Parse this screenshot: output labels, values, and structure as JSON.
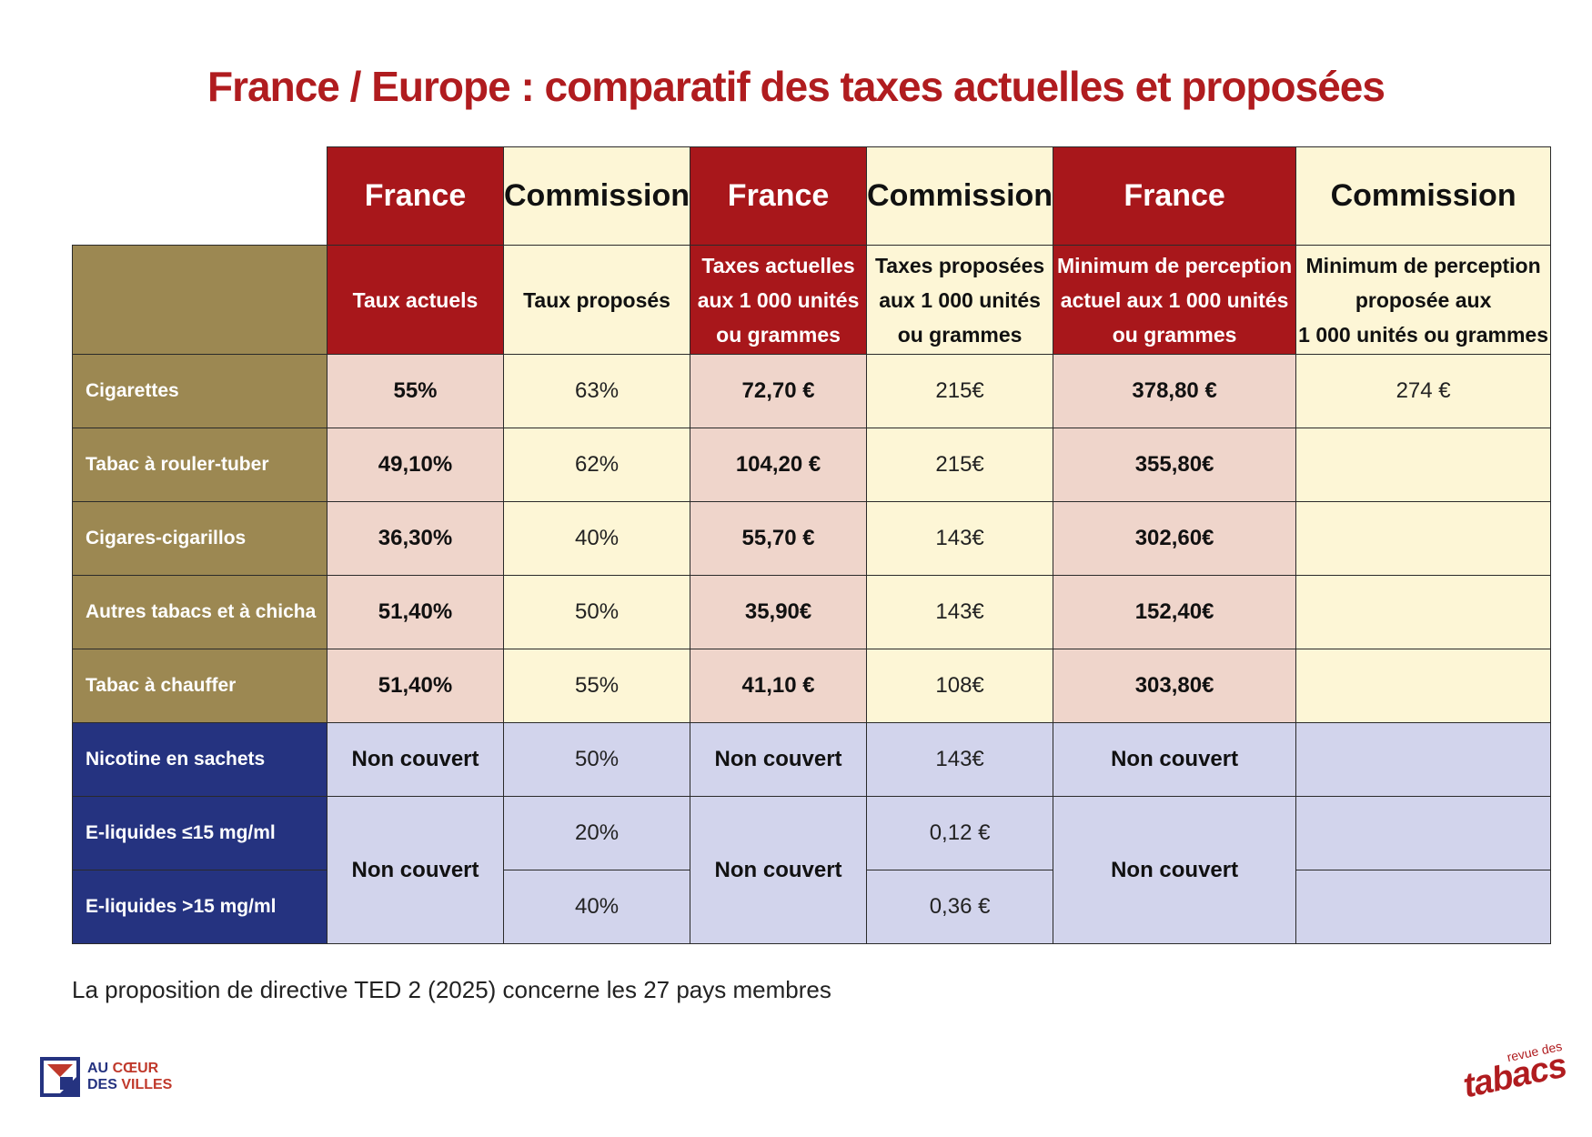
{
  "title": "France / Europe : comparatif des taxes actuelles et proposées",
  "header_top": [
    "France",
    "Commission",
    "France",
    "Commission",
    "France",
    "Commission"
  ],
  "header_sub": [
    [
      "Taux actuels"
    ],
    [
      "Taux proposés"
    ],
    [
      "Taxes actuelles",
      "aux 1 000 unités",
      "ou grammes"
    ],
    [
      "Taxes proposées",
      "aux 1 000 unités",
      "ou grammes"
    ],
    [
      "Minimum de perception",
      "actuel aux 1 000 unités",
      "ou grammes"
    ],
    [
      "Minimum de perception",
      "proposée aux",
      "1 000 unités ou grammes"
    ]
  ],
  "rows": [
    {
      "label": "Cigarettes",
      "taux_actuels": "55%",
      "taux_proposes": "63%",
      "taxes_actuelles": "72,70 €",
      "taxes_proposees": "215€",
      "min_actuel": "378,80 €",
      "min_propose": "274 €"
    },
    {
      "label": "Tabac à rouler-tuber",
      "taux_actuels": "49,10%",
      "taux_proposes": "62%",
      "taxes_actuelles": "104,20 €",
      "taxes_proposees": "215€",
      "min_actuel": "355,80€",
      "min_propose": ""
    },
    {
      "label": "Cigares-cigarillos",
      "taux_actuels": "36,30%",
      "taux_proposes": "40%",
      "taxes_actuelles": "55,70 €",
      "taxes_proposees": "143€",
      "min_actuel": "302,60€",
      "min_propose": ""
    },
    {
      "label": "Autres tabacs et à chicha",
      "taux_actuels": "51,40%",
      "taux_proposes": "50%",
      "taxes_actuelles": "35,90€",
      "taxes_proposees": "143€",
      "min_actuel": "152,40€",
      "min_propose": ""
    },
    {
      "label": "Tabac à chauffer",
      "taux_actuels": "51,40%",
      "taux_proposes": "55%",
      "taxes_actuelles": "41,10 €",
      "taxes_proposees": "108€",
      "min_actuel": "303,80€",
      "min_propose": ""
    },
    {
      "label": "Nicotine en sachets",
      "taux_actuels": "Non couvert",
      "taux_proposes": "50%",
      "taxes_actuelles": "Non couvert",
      "taxes_proposees": "143€",
      "min_actuel": "Non couvert",
      "min_propose": ""
    },
    {
      "label": "E-liquides ≤15 mg/ml",
      "taux_proposes": "20%",
      "taxes_proposees": "0,12 €",
      "min_propose": ""
    },
    {
      "label": "E-liquides >15 mg/ml",
      "taux_proposes": "40%",
      "taxes_proposees": "0,36 €",
      "min_propose": ""
    }
  ],
  "eliquides_merged": {
    "taux_actuels": "Non couvert",
    "taxes_actuelles": "Non couvert",
    "min_actuel": "Non couvert"
  },
  "footnote": "La proposition de directive TED 2 (2025) concerne les 27 pays membres",
  "logo_left": {
    "line1_a": "AU ",
    "line1_b": "CŒUR",
    "line2_a": "DES ",
    "line2_b": "VILLES"
  },
  "logo_right": {
    "small": "revue des",
    "big": "tabacs"
  },
  "colors": {
    "france_red": "#a8171b",
    "commission_cream": "#fdf6d6",
    "france_pink": "#efd5cb",
    "gold": "#9c8852",
    "navy": "#253380",
    "lavender": "#d2d4ec",
    "title_red": "#b01c1f"
  }
}
